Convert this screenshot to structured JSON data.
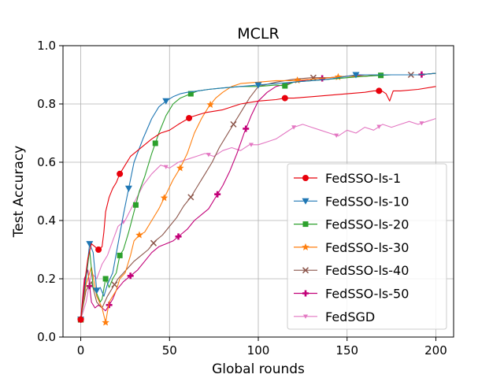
{
  "chart_data": {
    "type": "line",
    "title": "MCLR",
    "xlabel": "Global rounds",
    "ylabel": "Test Accuracy",
    "xlim": [
      -10,
      210
    ],
    "ylim": [
      0.0,
      1.0
    ],
    "xticks": [
      0,
      50,
      100,
      150,
      200
    ],
    "yticks": [
      0.0,
      0.2,
      0.4,
      0.6,
      0.8,
      1.0
    ],
    "xtick_labels": [
      "0",
      "50",
      "100",
      "150",
      "200"
    ],
    "ytick_labels": [
      "0.0",
      "0.2",
      "0.4",
      "0.6",
      "0.8",
      "1.0"
    ],
    "grid": true,
    "legend_position": "lower right",
    "series": [
      {
        "name": "FedSSO-ls-1",
        "color": "#e8000b",
        "marker": "circle",
        "x": [
          0,
          2,
          4,
          6,
          8,
          10,
          12,
          13,
          14,
          16,
          18,
          20,
          22,
          25,
          28,
          32,
          36,
          40,
          45,
          50,
          55,
          62,
          70,
          80,
          90,
          100,
          110,
          115,
          120,
          130,
          140,
          150,
          160,
          165,
          168,
          170,
          172,
          174,
          176,
          180,
          190,
          200
        ],
        "y": [
          0.06,
          0.18,
          0.27,
          0.32,
          0.31,
          0.3,
          0.31,
          0.36,
          0.43,
          0.48,
          0.51,
          0.53,
          0.56,
          0.59,
          0.62,
          0.64,
          0.66,
          0.68,
          0.7,
          0.71,
          0.73,
          0.755,
          0.77,
          0.78,
          0.8,
          0.81,
          0.815,
          0.82,
          0.82,
          0.825,
          0.83,
          0.835,
          0.84,
          0.845,
          0.845,
          0.843,
          0.835,
          0.81,
          0.845,
          0.845,
          0.85,
          0.86
        ],
        "marker_x": [
          0,
          10,
          22,
          61,
          115,
          168
        ]
      },
      {
        "name": "FedSSO-ls-10",
        "color": "#1f77b4",
        "marker": "triangle-down",
        "x": [
          0,
          3,
          5,
          7,
          9,
          11,
          13,
          15,
          18,
          21,
          24,
          27,
          30,
          35,
          40,
          44,
          48,
          52,
          56,
          60,
          66,
          72,
          80,
          90,
          100,
          110,
          120,
          130,
          140,
          150,
          155,
          160,
          170,
          180,
          190,
          200
        ],
        "y": [
          0.06,
          0.21,
          0.32,
          0.29,
          0.16,
          0.17,
          0.14,
          0.18,
          0.22,
          0.32,
          0.42,
          0.51,
          0.6,
          0.68,
          0.75,
          0.79,
          0.81,
          0.825,
          0.835,
          0.84,
          0.845,
          0.85,
          0.855,
          0.86,
          0.865,
          0.87,
          0.875,
          0.88,
          0.885,
          0.895,
          0.9,
          0.9,
          0.9,
          0.9,
          0.9,
          0.905
        ],
        "marker_x": [
          0,
          5,
          9,
          27,
          48,
          100,
          155
        ]
      },
      {
        "name": "FedSSO-ls-20",
        "color": "#2ca02c",
        "marker": "square",
        "x": [
          0,
          3,
          5,
          7,
          9,
          11,
          12,
          14,
          16,
          18,
          20,
          22,
          24,
          27,
          30,
          33,
          36,
          40,
          44,
          48,
          52,
          56,
          60,
          66,
          72,
          80,
          90,
          100,
          110,
          115,
          120,
          130,
          140,
          150,
          160,
          169,
          175,
          180,
          190,
          200
        ],
        "y": [
          0.06,
          0.2,
          0.3,
          0.17,
          0.15,
          0.12,
          0.13,
          0.2,
          0.17,
          0.2,
          0.22,
          0.28,
          0.3,
          0.36,
          0.43,
          0.5,
          0.55,
          0.63,
          0.7,
          0.76,
          0.8,
          0.82,
          0.83,
          0.845,
          0.85,
          0.855,
          0.86,
          0.86,
          0.865,
          0.862,
          0.875,
          0.88,
          0.885,
          0.89,
          0.895,
          0.898,
          0.9,
          0.9,
          0.9,
          0.905
        ],
        "marker_x": [
          0,
          14,
          22,
          31,
          42,
          62,
          115,
          169
        ]
      },
      {
        "name": "FedSSO-ls-30",
        "color": "#ff7f0e",
        "marker": "star",
        "x": [
          0,
          3,
          6,
          9,
          12,
          14,
          16,
          18,
          20,
          22,
          25,
          28,
          30,
          33,
          36,
          40,
          44,
          48,
          52,
          56,
          60,
          64,
          68,
          72,
          76,
          80,
          85,
          90,
          100,
          110,
          120,
          130,
          140,
          150,
          160,
          170,
          180,
          190,
          200
        ],
        "y": [
          0.06,
          0.18,
          0.24,
          0.14,
          0.1,
          0.05,
          0.12,
          0.14,
          0.16,
          0.2,
          0.22,
          0.28,
          0.33,
          0.35,
          0.36,
          0.4,
          0.44,
          0.49,
          0.54,
          0.58,
          0.63,
          0.7,
          0.75,
          0.79,
          0.82,
          0.84,
          0.86,
          0.87,
          0.875,
          0.88,
          0.88,
          0.885,
          0.89,
          0.895,
          0.895,
          0.9,
          0.9,
          0.9,
          0.905
        ],
        "marker_x": [
          0,
          14,
          33,
          47,
          56,
          73,
          122,
          145
        ]
      },
      {
        "name": "FedSSO-ls-40",
        "color": "#8c564b",
        "marker": "x",
        "x": [
          0,
          3,
          6,
          9,
          12,
          15,
          18,
          21,
          24,
          27,
          30,
          34,
          38,
          42,
          46,
          50,
          54,
          58,
          62,
          66,
          70,
          74,
          78,
          82,
          86,
          90,
          95,
          100,
          110,
          120,
          130,
          140,
          150,
          160,
          170,
          180,
          186,
          190,
          200
        ],
        "y": [
          0.06,
          0.16,
          0.19,
          0.12,
          0.1,
          0.14,
          0.17,
          0.2,
          0.22,
          0.24,
          0.26,
          0.28,
          0.3,
          0.33,
          0.35,
          0.38,
          0.41,
          0.45,
          0.48,
          0.52,
          0.56,
          0.6,
          0.65,
          0.69,
          0.73,
          0.77,
          0.82,
          0.86,
          0.875,
          0.885,
          0.89,
          0.89,
          0.895,
          0.895,
          0.9,
          0.9,
          0.9,
          0.9,
          0.905
        ],
        "marker_x": [
          0,
          19,
          41,
          62,
          86,
          131,
          186
        ]
      },
      {
        "name": "FedSSO-ls-50",
        "color": "#c20078",
        "marker": "plus",
        "x": [
          0,
          2,
          4,
          6,
          8,
          10,
          12,
          14,
          16,
          18,
          20,
          24,
          28,
          32,
          36,
          40,
          44,
          48,
          52,
          56,
          60,
          64,
          68,
          72,
          76,
          80,
          84,
          88,
          92,
          96,
          100,
          105,
          110,
          120,
          130,
          140,
          150,
          160,
          170,
          180,
          190,
          200
        ],
        "y": [
          0.06,
          0.2,
          0.23,
          0.12,
          0.1,
          0.11,
          0.1,
          0.09,
          0.11,
          0.13,
          0.16,
          0.19,
          0.21,
          0.23,
          0.26,
          0.29,
          0.31,
          0.32,
          0.33,
          0.35,
          0.37,
          0.4,
          0.42,
          0.44,
          0.48,
          0.52,
          0.57,
          0.63,
          0.7,
          0.76,
          0.81,
          0.84,
          0.86,
          0.875,
          0.885,
          0.89,
          0.895,
          0.9,
          0.9,
          0.9,
          0.9,
          0.905
        ],
        "marker_x": [
          0,
          5,
          16,
          28,
          55,
          77,
          93,
          136,
          192
        ]
      },
      {
        "name": "FedSGD",
        "color": "#e377c2",
        "marker": "triangle-down-small",
        "x": [
          0,
          3,
          6,
          9,
          12,
          15,
          18,
          21,
          25,
          30,
          35,
          40,
          45,
          50,
          55,
          60,
          65,
          70,
          75,
          80,
          85,
          90,
          95,
          100,
          105,
          110,
          115,
          120,
          125,
          130,
          135,
          140,
          145,
          150,
          155,
          160,
          165,
          170,
          175,
          180,
          185,
          190,
          195,
          200
        ],
        "y": [
          0.06,
          0.12,
          0.22,
          0.2,
          0.25,
          0.28,
          0.33,
          0.38,
          0.4,
          0.46,
          0.52,
          0.56,
          0.59,
          0.58,
          0.6,
          0.61,
          0.62,
          0.63,
          0.62,
          0.64,
          0.65,
          0.64,
          0.66,
          0.66,
          0.67,
          0.68,
          0.7,
          0.72,
          0.73,
          0.72,
          0.71,
          0.7,
          0.69,
          0.71,
          0.7,
          0.72,
          0.71,
          0.73,
          0.72,
          0.73,
          0.74,
          0.73,
          0.74,
          0.75
        ],
        "marker_x": [
          0,
          24,
          48,
          72,
          96,
          120,
          144,
          168,
          192
        ]
      }
    ]
  }
}
